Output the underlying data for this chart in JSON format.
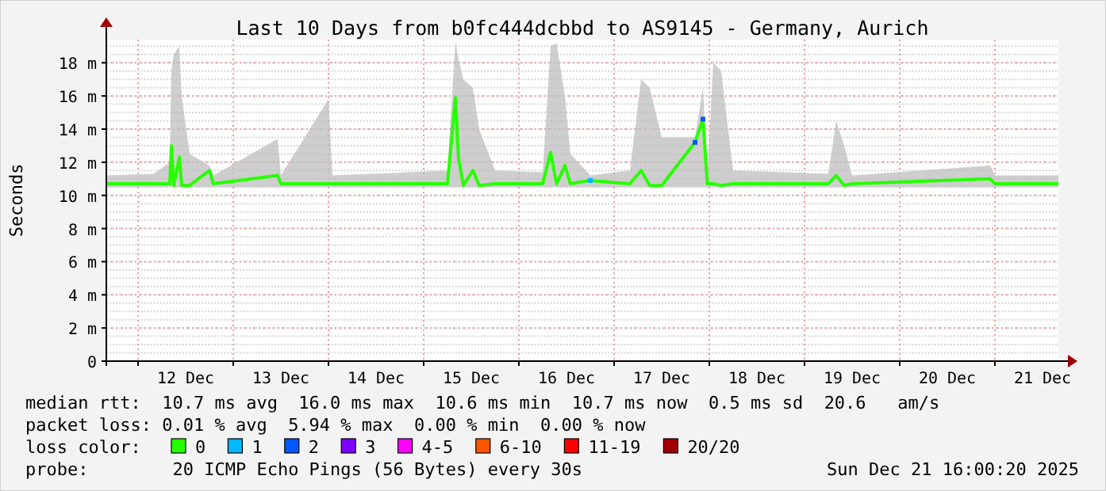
{
  "chart_data": {
    "type": "line",
    "title": "Last 10 Days from b0fc444dcbbd to AS9145 - Germany, Aurich",
    "ylabel": "Seconds",
    "xlim": [
      "2025-12-11T16:00",
      "2025-12-21T16:00"
    ],
    "xticks": [
      {
        "value": "2025-12-12T00:00",
        "label": null
      },
      {
        "value": "2025-12-12T12:00",
        "label": "12 Dec"
      },
      {
        "value": "2025-12-13T00:00",
        "label": null
      },
      {
        "value": "2025-12-13T12:00",
        "label": "13 Dec"
      },
      {
        "value": "2025-12-14T00:00",
        "label": null
      },
      {
        "value": "2025-12-14T12:00",
        "label": "14 Dec"
      },
      {
        "value": "2025-12-15T00:00",
        "label": null
      },
      {
        "value": "2025-12-15T12:00",
        "label": "15 Dec"
      },
      {
        "value": "2025-12-16T00:00",
        "label": null
      },
      {
        "value": "2025-12-16T12:00",
        "label": "16 Dec"
      },
      {
        "value": "2025-12-17T00:00",
        "label": null
      },
      {
        "value": "2025-12-17T12:00",
        "label": "17 Dec"
      },
      {
        "value": "2025-12-18T00:00",
        "label": null
      },
      {
        "value": "2025-12-18T12:00",
        "label": "18 Dec"
      },
      {
        "value": "2025-12-19T00:00",
        "label": null
      },
      {
        "value": "2025-12-19T12:00",
        "label": "19 Dec"
      },
      {
        "value": "2025-12-20T00:00",
        "label": null
      },
      {
        "value": "2025-12-20T12:00",
        "label": "20 Dec"
      },
      {
        "value": "2025-12-21T00:00",
        "label": null
      },
      {
        "value": "2025-12-21T12:00",
        "label": "21 Dec"
      }
    ],
    "ylim": [
      0,
      19.4
    ],
    "yticks": [
      0,
      {
        "value": 2,
        "label": "2 m"
      },
      {
        "value": 4,
        "label": "4 m"
      },
      {
        "value": 6,
        "label": "6 m"
      },
      {
        "value": 8,
        "label": "8 m"
      },
      {
        "value": 10,
        "label": "10 m"
      },
      {
        "value": 12,
        "label": "12 m"
      },
      {
        "value": 14,
        "label": "14 m"
      },
      {
        "value": 16,
        "label": "16 m"
      },
      {
        "value": 18,
        "label": "18 m"
      }
    ],
    "grid": true,
    "legend": "bottom",
    "legend_title": "loss color:",
    "series": [
      {
        "name": "0",
        "color": "#26ff00",
        "marker": "none",
        "x": [
          "2025-12-11T16:00",
          "2025-12-12T04:00",
          "2025-12-12T08:00",
          "2025-12-12T08:24",
          "2025-12-12T09:00",
          "2025-12-12T10:24",
          "2025-12-12T11:00",
          "2025-12-12T13:00",
          "2025-12-12T18:00",
          "2025-12-12T19:00",
          "2025-12-13T11:12",
          "2025-12-13T12:00",
          "2025-12-14T00:00",
          "2025-12-14T01:00",
          "2025-12-15T06:00",
          "2025-12-15T08:00",
          "2025-12-15T08:48",
          "2025-12-15T10:00",
          "2025-12-15T12:24",
          "2025-12-15T14:00",
          "2025-12-15T18:00",
          "2025-12-16T06:00",
          "2025-12-16T08:00",
          "2025-12-16T09:30",
          "2025-12-16T11:36",
          "2025-12-16T13:00",
          "2025-12-16T18:00",
          "2025-12-17T04:00",
          "2025-12-17T06:48",
          "2025-12-17T09:00",
          "2025-12-17T12:00",
          "2025-12-17T20:24",
          "2025-12-17T22:24",
          "2025-12-17T23:30",
          "2025-12-18T01:00",
          "2025-12-18T03:00",
          "2025-12-18T06:00",
          "2025-12-19T06:00",
          "2025-12-19T08:00",
          "2025-12-19T10:00",
          "2025-12-19T12:00",
          "2025-12-20T22:48",
          "2025-12-21T00:00",
          "2025-12-21T16:00"
        ],
        "values": [
          10.7,
          10.7,
          10.7,
          13,
          10.6,
          12.3,
          10.6,
          10.6,
          11.5,
          10.7,
          11.2,
          10.7,
          10.7,
          10.7,
          10.7,
          15.9,
          12.2,
          10.6,
          11.5,
          10.6,
          10.7,
          10.7,
          12.6,
          10.7,
          11.8,
          10.7,
          10.9,
          10.7,
          11.5,
          10.6,
          10.6,
          13.2,
          14.6,
          10.7,
          10.7,
          10.6,
          10.7,
          10.7,
          11.2,
          10.6,
          10.7,
          11,
          10.7,
          10.7
        ],
        "lower": [
          10.5,
          10.5,
          10.5,
          10.5,
          10.5,
          10.5,
          10.5,
          10.5,
          10.5,
          10.5,
          10.5,
          10.5,
          10.5,
          10.5,
          10.5,
          10.5,
          10.5,
          10.5,
          10.5,
          10.5,
          10.5,
          10.5,
          10.5,
          10.5,
          10.5,
          10.5,
          10.5,
          10.5,
          10.5,
          10.5,
          10.5,
          10.5,
          10.5,
          10.5,
          10.5,
          10.5,
          10.5,
          10.5,
          10.5,
          10.5,
          10.5,
          10.5,
          10.5,
          10.5
        ],
        "upper": [
          11.2,
          11.3,
          12,
          17.5,
          18.5,
          19,
          16,
          12.5,
          11.8,
          11.2,
          13.4,
          11.2,
          15.8,
          11.2,
          11.5,
          19.3,
          18.2,
          17,
          16.5,
          14,
          11.5,
          11.4,
          19,
          19.2,
          16,
          12.5,
          11.2,
          11.5,
          17,
          16.5,
          13.5,
          13.5,
          16.5,
          11.2,
          18,
          17.5,
          11.5,
          11.3,
          14.5,
          13,
          11.2,
          11.8,
          11.2,
          11.2
        ]
      },
      {
        "name": "1",
        "color": "#00b8ff",
        "type": "scatter",
        "marker": "square",
        "x": [
          "2025-12-16T18:00"
        ],
        "values": [
          10.9
        ]
      },
      {
        "name": "2",
        "color": "#0059ff",
        "type": "scatter",
        "marker": "square",
        "x": [
          "2025-12-17T20:24",
          "2025-12-17T22:24"
        ],
        "values": [
          13.2,
          14.6
        ]
      },
      {
        "name": "3",
        "color": "#7e00ff",
        "type": "scatter",
        "marker": "square"
      },
      {
        "name": "4-5",
        "color": "#ff00ff",
        "type": "scatter",
        "marker": "square"
      },
      {
        "name": "6-10",
        "color": "#ff5500",
        "type": "scatter",
        "marker": "square"
      },
      {
        "name": "11-19",
        "color": "#ff0000",
        "type": "scatter",
        "marker": "square"
      },
      {
        "name": "20/20",
        "color": "#a10000",
        "type": "scatter",
        "marker": "square"
      }
    ],
    "annotations": [
      "median rtt:  10.7 ms avg  16.0 ms max  10.6 ms min  10.7 ms now  0.5 ms sd  20.6   am/s",
      "packet loss: 0.01 % avg  5.94 % max  0.00 % min  0.00 % now",
      "probe:        20 ICMP Echo Pings (56 Bytes) every 30s",
      "Sun Dec 21 16:00:20 2025"
    ]
  }
}
